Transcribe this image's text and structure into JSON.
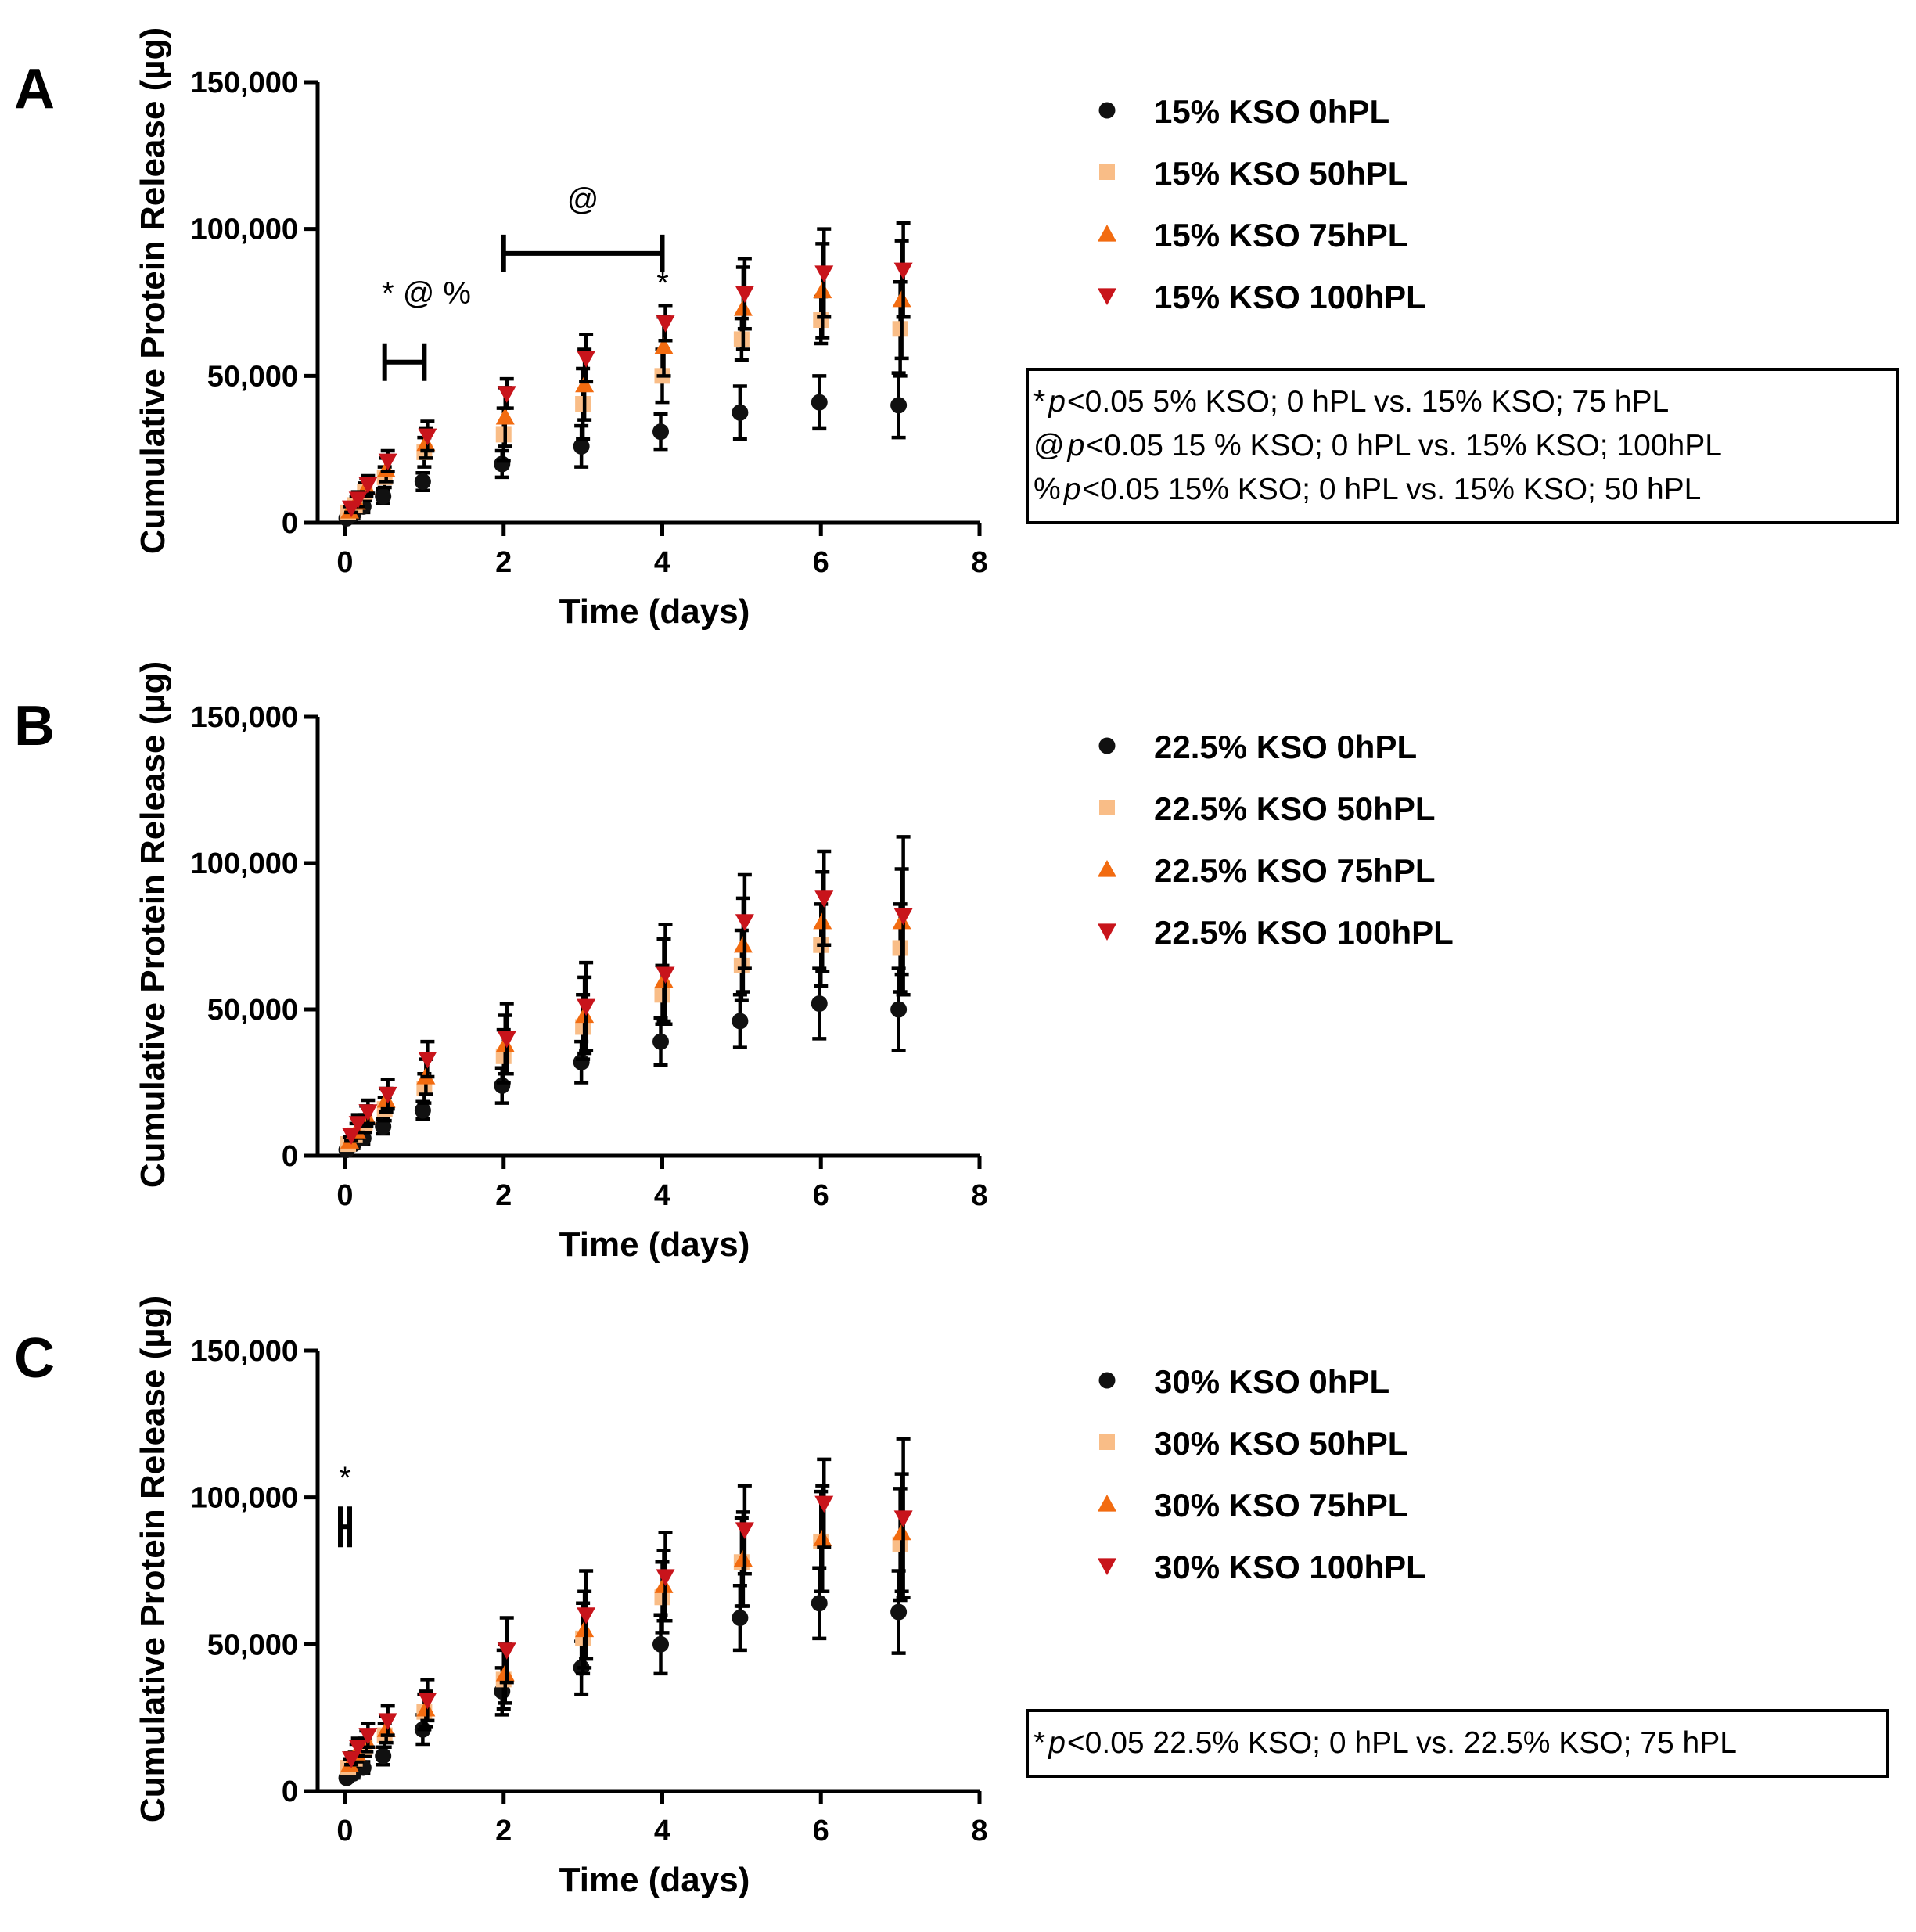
{
  "figure": {
    "colors": {
      "0hPL": "#111111",
      "50hPL": "#f9bd87",
      "75hPL": "#f26b10",
      "100hPL": "#c8141b"
    },
    "marker_shapes": {
      "0hPL": "circle",
      "50hPL": "square",
      "75hPL": "triangle-up",
      "100hPL": "triangle-down"
    }
  },
  "chart_data": [
    {
      "panel": "A",
      "type": "scatter",
      "xlabel": "Time (days)",
      "ylabel": "Cumulative Protein Release  (µg)",
      "xlim": [
        0,
        8
      ],
      "ylim": [
        0,
        150000
      ],
      "xticks": [
        0,
        2,
        4,
        6,
        8
      ],
      "yticks": [
        0,
        50000,
        100000,
        150000
      ],
      "ytick_labels": [
        "0",
        "50,000",
        "100,000",
        "150,000"
      ],
      "x": [
        0.04,
        0.125,
        0.25,
        0.5,
        1,
        2,
        3,
        4,
        5,
        6,
        7
      ],
      "series": [
        {
          "name": "15% KSO 0hPL",
          "key": "0hPL",
          "values": [
            1500,
            3000,
            5500,
            9000,
            14000,
            20000,
            26000,
            31000,
            37500,
            41000,
            40000
          ],
          "errors": [
            1000,
            1500,
            2000,
            2500,
            3000,
            4500,
            7000,
            6000,
            9000,
            9000,
            11000
          ]
        },
        {
          "name": "15% KSO 50hPL",
          "key": "50hPL",
          "values": [
            3500,
            6000,
            10500,
            15500,
            24000,
            30000,
            40500,
            50000,
            62500,
            69000,
            66000
          ],
          "errors": [
            1500,
            2000,
            3000,
            3500,
            5000,
            9000,
            12000,
            9000,
            7000,
            8000,
            16000
          ]
        },
        {
          "name": "15% KSO 75hPL",
          "key": "75hPL",
          "values": [
            4000,
            7000,
            12000,
            18000,
            27000,
            36000,
            47000,
            60000,
            73000,
            79000,
            76000
          ],
          "errors": [
            1500,
            2000,
            3000,
            4000,
            5000,
            10000,
            12000,
            10000,
            14000,
            16000,
            20000
          ]
        },
        {
          "name": "15% KSO 100hPL",
          "key": "100hPL",
          "values": [
            5000,
            8000,
            13000,
            21000,
            29500,
            44000,
            56000,
            68000,
            78000,
            85000,
            86000
          ],
          "errors": [
            1500,
            2500,
            3000,
            3500,
            5000,
            5000,
            8000,
            6000,
            12000,
            15000,
            16000
          ]
        }
      ],
      "legend": [
        "15% KSO 0hPL",
        "15% KSO 50hPL",
        "15% KSO 75hPL",
        "15% KSO 100hPL"
      ],
      "annotations": [
        {
          "text": "* @ %",
          "x_from": 0.5,
          "x_to": 1,
          "y": 60000
        },
        {
          "text": "@",
          "x_from": 2,
          "x_to": 4,
          "y": 97000
        },
        {
          "text": "*",
          "x": 4,
          "y": 75000
        }
      ],
      "notes": [
        {
          "symbol": "*",
          "p": "p",
          "text": "<0.05 5% KSO; 0 hPL vs. 15% KSO; 75 hPL"
        },
        {
          "symbol": "@",
          "p": "p",
          "text": "<0.05 15 % KSO; 0 hPL vs. 15% KSO; 100hPL"
        },
        {
          "symbol": "%",
          "p": "p",
          "text": "<0.05 15% KSO; 0 hPL vs. 15% KSO; 50 hPL"
        }
      ]
    },
    {
      "panel": "B",
      "type": "scatter",
      "xlabel": "Time (days)",
      "ylabel": "Cumulative Protein Release  (µg)",
      "xlim": [
        0,
        8
      ],
      "ylim": [
        0,
        150000
      ],
      "xticks": [
        0,
        2,
        4,
        6,
        8
      ],
      "yticks": [
        0,
        50000,
        100000,
        150000
      ],
      "ytick_labels": [
        "0",
        "50,000",
        "100,000",
        "150,000"
      ],
      "x": [
        0.04,
        0.125,
        0.25,
        0.5,
        1,
        2,
        3,
        4,
        5,
        6,
        7
      ],
      "series": [
        {
          "name": "22.5% KSO 0hPL",
          "key": "0hPL",
          "values": [
            2000,
            4000,
            6000,
            10000,
            15500,
            24000,
            32000,
            39000,
            46000,
            52000,
            50000
          ],
          "errors": [
            1000,
            1500,
            2000,
            2500,
            3000,
            6000,
            7000,
            8000,
            9000,
            12000,
            14000
          ]
        },
        {
          "name": "22.5% KSO 50hPL",
          "key": "50hPL",
          "values": [
            4000,
            7000,
            11000,
            16000,
            23000,
            34000,
            44000,
            55000,
            65000,
            72000,
            71000
          ],
          "errors": [
            1500,
            2000,
            3000,
            4000,
            5000,
            9000,
            11000,
            10000,
            12000,
            14000,
            15000
          ]
        },
        {
          "name": "22.5% KSO 75hPL",
          "key": "75hPL",
          "values": [
            5000,
            8500,
            13500,
            19000,
            27000,
            38000,
            48000,
            60000,
            72000,
            80000,
            80000
          ],
          "errors": [
            1500,
            2500,
            3500,
            4000,
            6000,
            10000,
            13000,
            14000,
            16000,
            17000,
            18000
          ]
        },
        {
          "name": "22.5% KSO 100hPL",
          "key": "100hPL",
          "values": [
            7000,
            11000,
            15000,
            21000,
            33000,
            40000,
            51000,
            62000,
            80000,
            88000,
            82000
          ],
          "errors": [
            2000,
            3000,
            4000,
            5000,
            6000,
            12000,
            15000,
            17000,
            16000,
            16000,
            27000
          ]
        }
      ],
      "legend": [
        "22.5% KSO 0hPL",
        "22.5% KSO 50hPL",
        "22.5% KSO 75hPL",
        "22.5% KSO 100hPL"
      ],
      "annotations": [],
      "notes": []
    },
    {
      "panel": "C",
      "type": "scatter",
      "xlabel": "Time (days)",
      "ylabel": "Cumulative Protein Release  (µg)",
      "xlim": [
        0,
        8
      ],
      "ylim": [
        0,
        150000
      ],
      "xticks": [
        0,
        2,
        4,
        6,
        8
      ],
      "yticks": [
        0,
        50000,
        100000,
        150000
      ],
      "ytick_labels": [
        "0",
        "50,000",
        "100,000",
        "150,000"
      ],
      "x": [
        0.04,
        0.125,
        0.25,
        0.5,
        1,
        2,
        3,
        4,
        5,
        6,
        7
      ],
      "series": [
        {
          "name": "30% KSO 0hPL",
          "key": "0hPL",
          "values": [
            4500,
            6000,
            8000,
            12000,
            21000,
            34000,
            42000,
            50000,
            59000,
            64000,
            61000
          ],
          "errors": [
            1000,
            1500,
            2000,
            3000,
            5000,
            8000,
            9000,
            10000,
            11000,
            12000,
            14000
          ]
        },
        {
          "name": "30% KSO 50hPL",
          "key": "50hPL",
          "values": [
            8000,
            11000,
            15000,
            19000,
            27000,
            38000,
            52000,
            66000,
            78000,
            85000,
            84000
          ],
          "errors": [
            1500,
            2500,
            3000,
            4000,
            6000,
            10000,
            12000,
            12000,
            15000,
            17000,
            19000
          ]
        },
        {
          "name": "30% KSO 75hPL",
          "key": "75hPL",
          "values": [
            9000,
            13000,
            17000,
            21000,
            28000,
            40000,
            55000,
            70000,
            79000,
            86000,
            88000
          ],
          "errors": [
            2000,
            3000,
            3500,
            4500,
            6000,
            10000,
            13000,
            12000,
            16000,
            18000,
            20000
          ]
        },
        {
          "name": "30% KSO 100hPL",
          "key": "100hPL",
          "values": [
            11000,
            15000,
            19000,
            24000,
            31000,
            48000,
            60000,
            73000,
            89000,
            98000,
            93000
          ],
          "errors": [
            2000,
            3000,
            4000,
            5000,
            7000,
            11000,
            15000,
            15000,
            15000,
            15000,
            27000
          ]
        }
      ],
      "legend": [
        "30% KSO 0hPL",
        "30% KSO 50hPL",
        "30% KSO 75hPL",
        "30% KSO 100hPL"
      ],
      "annotations": [
        {
          "text": "*",
          "x": 0,
          "y": 90000
        }
      ],
      "notes": [
        {
          "symbol": "*",
          "p": "p",
          "text": "<0.05 22.5% KSO; 0 hPL vs. 22.5% KSO; 75 hPL"
        }
      ]
    }
  ]
}
